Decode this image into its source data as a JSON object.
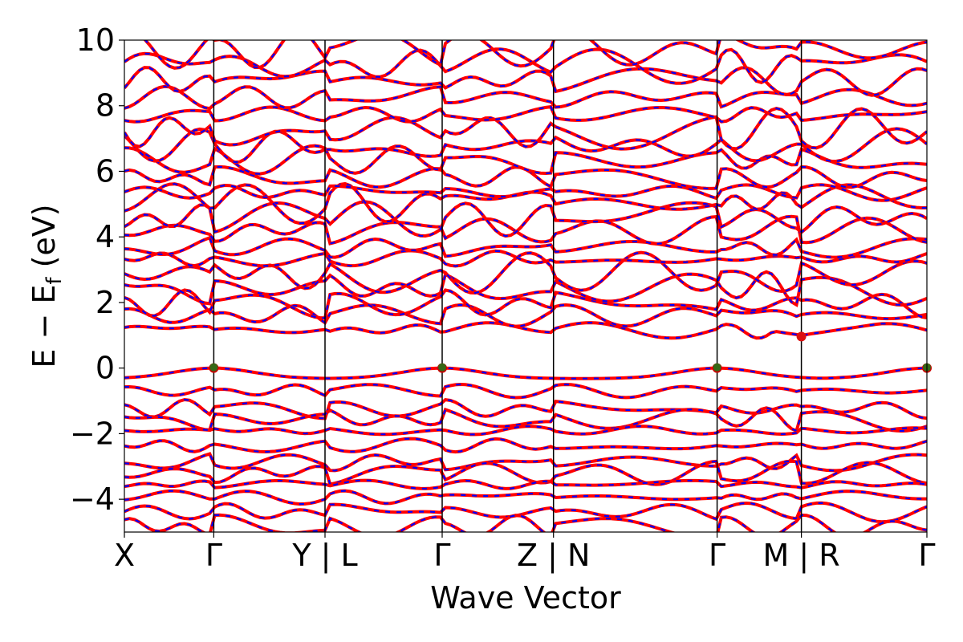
{
  "chart_data": {
    "type": "line",
    "title": "",
    "xlabel": "Wave Vector",
    "ylabel_main": "E − E",
    "ylabel_sub": "f",
    "ylabel_unit": " (eV)",
    "ylim": [
      -5,
      10
    ],
    "yticks": [
      {
        "value": -4,
        "label": "−4"
      },
      {
        "value": -2,
        "label": "−2"
      },
      {
        "value": 0,
        "label": "0"
      },
      {
        "value": 2,
        "label": "2"
      },
      {
        "value": 4,
        "label": "4"
      },
      {
        "value": 6,
        "label": "6"
      },
      {
        "value": 8,
        "label": "8"
      },
      {
        "value": 10,
        "label": "10"
      }
    ],
    "xlim": [
      0,
      1
    ],
    "kpath_ticks": [
      {
        "pos": 0.0,
        "label": "X"
      },
      {
        "pos": 0.1114,
        "label": "Γ"
      },
      {
        "pos": 0.25,
        "label": "Y | L"
      },
      {
        "pos": 0.396,
        "label": "Γ"
      },
      {
        "pos": 0.5347,
        "label": "Z | N"
      },
      {
        "pos": 0.7386,
        "label": "Γ"
      },
      {
        "pos": 0.8436,
        "label": "M | R"
      },
      {
        "pos": 1.0,
        "label": "Γ"
      }
    ],
    "grid": false,
    "series": [
      {
        "style": "solid",
        "color": "#ff0000"
      },
      {
        "style": "dashed",
        "color": "#0000ff"
      }
    ],
    "markers": [
      {
        "x": 0.1114,
        "y": 0.0,
        "color": "#cc0000",
        "overlay_color": "#1a7a1a"
      },
      {
        "x": 0.396,
        "y": 0.0,
        "color": "#cc0000",
        "overlay_color": "#1a7a1a"
      },
      {
        "x": 0.7386,
        "y": 0.0,
        "color": "#cc0000",
        "overlay_color": "#1a7a1a"
      },
      {
        "x": 1.0,
        "y": 0.0,
        "color": "#cc0000",
        "overlay_color": "#1a7a1a"
      },
      {
        "x": 0.8436,
        "y": 0.96,
        "color": "#dd1111",
        "overlay_color": ""
      }
    ],
    "bands": {
      "valence": [
        -0.25,
        -0.7,
        -1.25,
        -1.55,
        -1.9,
        -2.35,
        -2.85,
        -3.2,
        -3.55,
        -3.95,
        -4.4,
        -4.85
      ],
      "conduction": [
        1.15,
        1.6,
        1.95,
        2.45,
        2.9,
        3.35,
        3.7,
        4.2,
        4.55,
        5.0,
        5.35,
        5.8,
        6.35,
        6.8,
        7.3,
        7.75,
        8.25,
        8.75,
        9.2,
        9.7
      ]
    }
  }
}
